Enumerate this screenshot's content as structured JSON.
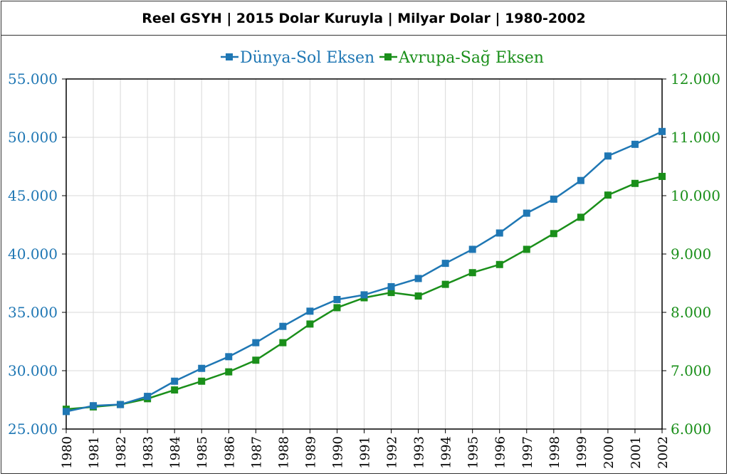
{
  "title": "Reel GSYH | 2015 Dolar Kuruyla | Milyar Dolar | 1980-2002",
  "colors": {
    "world": "#1f77b4",
    "europe": "#1a8f1a",
    "grid": "#d9d9d9",
    "frame": "#000000"
  },
  "chart_data": {
    "type": "line",
    "title": "Reel GSYH | 2015 Dolar Kuruyla | Milyar Dolar | 1980-2002",
    "x": [
      "1980",
      "1981",
      "1982",
      "1983",
      "1984",
      "1985",
      "1986",
      "1987",
      "1988",
      "1989",
      "1990",
      "1991",
      "1992",
      "1993",
      "1994",
      "1995",
      "1996",
      "1997",
      "1998",
      "1999",
      "2000",
      "2001",
      "2002"
    ],
    "series": [
      {
        "name": "Dünya-Sol Eksen",
        "axis": "left",
        "values": [
          26500,
          27000,
          27100,
          27800,
          29100,
          30200,
          31200,
          32400,
          33800,
          35100,
          36100,
          36500,
          37200,
          37900,
          39200,
          40400,
          41800,
          43500,
          44700,
          46300,
          48400,
          49400,
          50500
        ]
      },
      {
        "name": "Avrupa-Sağ Eksen",
        "axis": "right",
        "values": [
          6340,
          6380,
          6420,
          6520,
          6670,
          6820,
          6980,
          7180,
          7480,
          7800,
          8080,
          8250,
          8340,
          8280,
          8480,
          8680,
          8820,
          9080,
          9350,
          9630,
          10010,
          10210,
          10330
        ]
      }
    ],
    "y_left": {
      "min": 25000,
      "max": 55000,
      "ticks": [
        "25.000",
        "30.000",
        "35.000",
        "40.000",
        "45.000",
        "50.000",
        "55.000"
      ]
    },
    "y_right": {
      "min": 6000,
      "max": 12000,
      "ticks": [
        "6.000",
        "7.000",
        "8.000",
        "9.000",
        "10.000",
        "11.000",
        "12.000"
      ]
    },
    "legend_position": "top-center",
    "grid": true
  }
}
